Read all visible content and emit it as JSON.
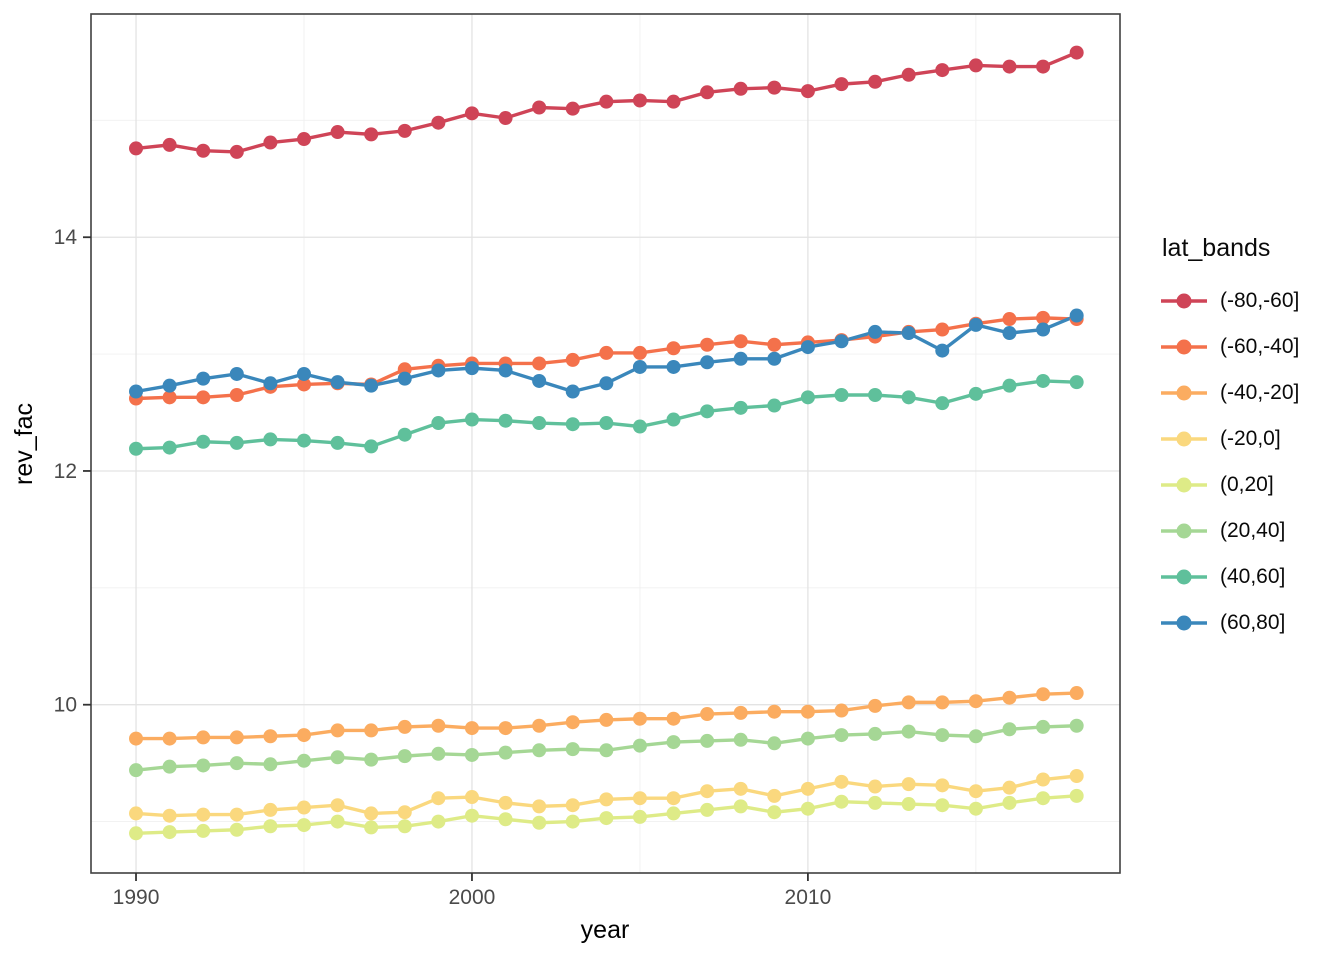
{
  "chart_data": {
    "type": "line",
    "title": "",
    "xlabel": "year",
    "ylabel": "rev_fac",
    "legend_title": "lat_bands",
    "legend_position": "right",
    "grid": "major+minor",
    "x_ticks": [
      1990,
      2000,
      2010
    ],
    "y_ticks": [
      10,
      12,
      14
    ],
    "x_minor": [
      1995,
      2005,
      2015
    ],
    "y_minor": [
      9,
      11,
      13,
      15
    ],
    "xlim": [
      1988.66,
      2019.29
    ],
    "ylim": [
      8.56,
      15.91
    ],
    "x": [
      1990,
      1991,
      1992,
      1993,
      1994,
      1995,
      1996,
      1997,
      1998,
      1999,
      2000,
      2001,
      2002,
      2003,
      2004,
      2005,
      2006,
      2007,
      2008,
      2009,
      2010,
      2011,
      2012,
      2013,
      2014,
      2015,
      2016,
      2017,
      2018
    ],
    "series": [
      {
        "name": "(-80,-60]",
        "color": "#CF4457",
        "values": [
          14.76,
          14.79,
          14.74,
          14.73,
          14.81,
          14.84,
          14.9,
          14.88,
          14.91,
          14.98,
          15.06,
          15.02,
          15.11,
          15.1,
          15.16,
          15.17,
          15.16,
          15.24,
          15.27,
          15.28,
          15.25,
          15.31,
          15.33,
          15.39,
          15.43,
          15.47,
          15.46,
          15.46,
          15.58
        ]
      },
      {
        "name": "(-60,-40]",
        "color": "#F4714B",
        "values": [
          12.62,
          12.63,
          12.63,
          12.65,
          12.72,
          12.74,
          12.75,
          12.74,
          12.87,
          12.9,
          12.92,
          12.92,
          12.92,
          12.95,
          13.01,
          13.01,
          13.05,
          13.08,
          13.11,
          13.08,
          13.1,
          13.12,
          13.15,
          13.19,
          13.21,
          13.26,
          13.3,
          13.31,
          13.3
        ]
      },
      {
        "name": "(-40,-20]",
        "color": "#FBAC60",
        "values": [
          9.71,
          9.71,
          9.72,
          9.72,
          9.73,
          9.74,
          9.78,
          9.78,
          9.81,
          9.82,
          9.8,
          9.8,
          9.82,
          9.85,
          9.87,
          9.88,
          9.88,
          9.92,
          9.93,
          9.94,
          9.94,
          9.95,
          9.99,
          10.02,
          10.02,
          10.03,
          10.06,
          10.09,
          10.1
        ]
      },
      {
        "name": "(-20,0]",
        "color": "#FAD87E",
        "values": [
          9.07,
          9.05,
          9.06,
          9.06,
          9.1,
          9.12,
          9.14,
          9.07,
          9.08,
          9.2,
          9.21,
          9.16,
          9.13,
          9.14,
          9.19,
          9.2,
          9.2,
          9.26,
          9.28,
          9.22,
          9.28,
          9.34,
          9.3,
          9.32,
          9.31,
          9.26,
          9.29,
          9.36,
          9.39
        ]
      },
      {
        "name": "(0,20]",
        "color": "#DEEB87",
        "values": [
          8.9,
          8.91,
          8.92,
          8.93,
          8.96,
          8.97,
          9.0,
          8.95,
          8.96,
          9.0,
          9.05,
          9.02,
          8.99,
          9.0,
          9.03,
          9.04,
          9.07,
          9.1,
          9.13,
          9.08,
          9.11,
          9.17,
          9.16,
          9.15,
          9.14,
          9.11,
          9.16,
          9.2,
          9.22
        ]
      },
      {
        "name": "(20,40]",
        "color": "#A5D795",
        "values": [
          9.44,
          9.47,
          9.48,
          9.5,
          9.49,
          9.52,
          9.55,
          9.53,
          9.56,
          9.58,
          9.57,
          9.59,
          9.61,
          9.62,
          9.61,
          9.65,
          9.68,
          9.69,
          9.7,
          9.67,
          9.71,
          9.74,
          9.75,
          9.77,
          9.74,
          9.73,
          9.79,
          9.81,
          9.82
        ]
      },
      {
        "name": "(40,60]",
        "color": "#5FC09B",
        "values": [
          12.19,
          12.2,
          12.25,
          12.24,
          12.27,
          12.26,
          12.24,
          12.21,
          12.31,
          12.41,
          12.44,
          12.43,
          12.41,
          12.4,
          12.41,
          12.38,
          12.44,
          12.51,
          12.54,
          12.56,
          12.63,
          12.65,
          12.65,
          12.63,
          12.58,
          12.66,
          12.73,
          12.77,
          12.76
        ]
      },
      {
        "name": "(60,80]",
        "color": "#3A87BB",
        "values": [
          12.68,
          12.73,
          12.79,
          12.83,
          12.75,
          12.83,
          12.76,
          12.73,
          12.79,
          12.86,
          12.88,
          12.86,
          12.77,
          12.68,
          12.75,
          12.89,
          12.89,
          12.93,
          12.96,
          12.96,
          13.06,
          13.11,
          13.19,
          13.18,
          13.03,
          13.25,
          13.18,
          13.21,
          13.33
        ]
      }
    ],
    "style": {
      "panel_background": "#FFFFFF",
      "panel_border": "#404040",
      "grid_major_color": "#E3E3E3",
      "grid_minor_color": "#F0F0F0",
      "tick_color": "#333333",
      "tick_label_color": "#4A4A4A",
      "axis_title_color": "#000000"
    }
  }
}
